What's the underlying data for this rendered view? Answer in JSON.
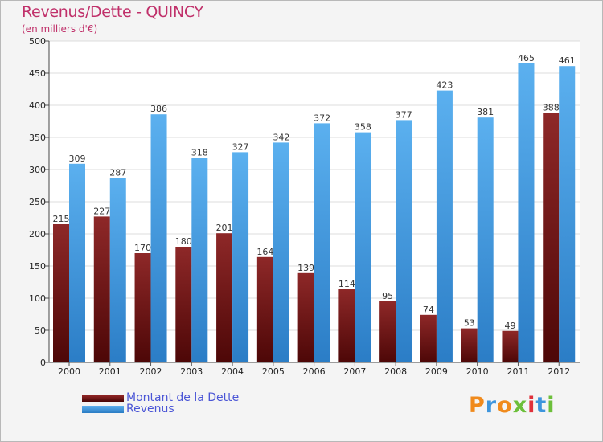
{
  "chart_data": {
    "type": "bar",
    "title": "Revenus/Dette - QUINCY",
    "subtitle": "(en milliers d'€)",
    "categories": [
      "2000",
      "2001",
      "2002",
      "2003",
      "2004",
      "2005",
      "2006",
      "2007",
      "2008",
      "2009",
      "2010",
      "2011",
      "2012"
    ],
    "series": [
      {
        "name": "Montant de la Dette",
        "color": "#7a1a1a",
        "values": [
          215,
          227,
          170,
          180,
          201,
          164,
          139,
          114,
          95,
          74,
          53,
          49,
          388
        ]
      },
      {
        "name": "Revenus",
        "color": "#3d95dd",
        "values": [
          309,
          287,
          386,
          318,
          327,
          342,
          372,
          358,
          377,
          423,
          381,
          465,
          461
        ]
      }
    ],
    "ylim": [
      0,
      500
    ],
    "yticks": [
      0,
      50,
      100,
      150,
      200,
      250,
      300,
      350,
      400,
      450,
      500
    ],
    "grid": true,
    "legend_position": "bottom-left"
  },
  "logo": {
    "text": "Proxiti"
  }
}
